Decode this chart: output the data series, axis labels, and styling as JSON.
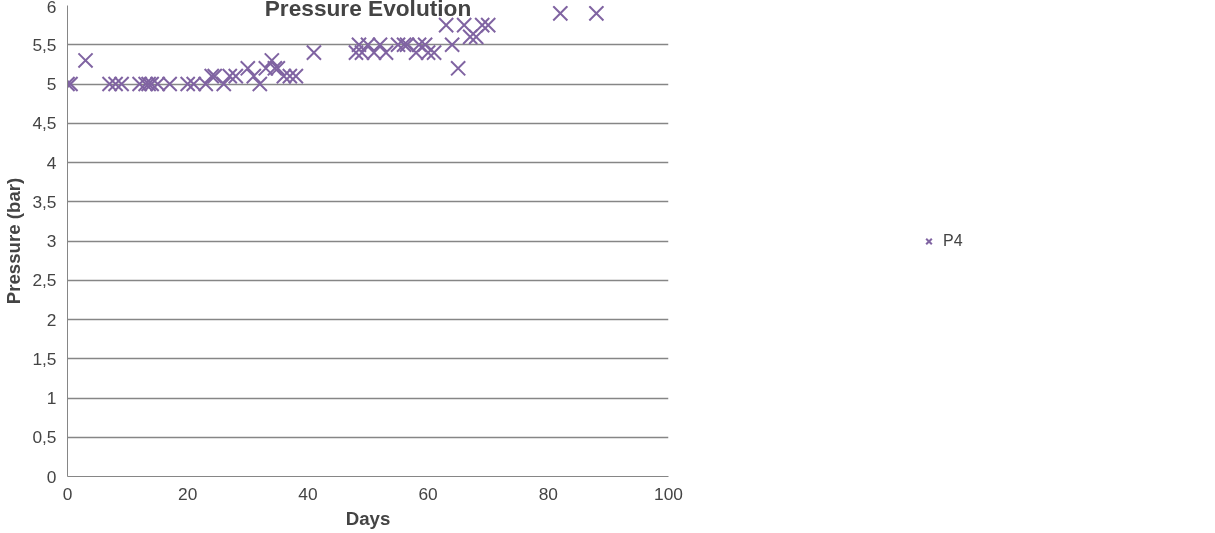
{
  "chart_data": {
    "type": "scatter",
    "title": "Pressure Evolution",
    "xlabel": "Days",
    "ylabel": "Pressure (bar)",
    "xlim": [
      0,
      100
    ],
    "xticks": [
      0,
      20,
      40,
      60,
      80,
      100
    ],
    "ylim": [
      0,
      6
    ],
    "yticks": [
      0,
      {
        "value": 0.5,
        "label": "0,5"
      },
      1,
      {
        "value": 1.5,
        "label": "1,5"
      },
      2,
      {
        "value": 2.5,
        "label": "2,5"
      },
      3,
      {
        "value": 3.5,
        "label": "3,5"
      },
      4,
      {
        "value": 4.5,
        "label": "4,5"
      },
      5,
      {
        "value": 5.5,
        "label": "5,5"
      },
      6
    ],
    "grid": "y",
    "legend": "right",
    "marker": "cross",
    "series": [
      {
        "name": "P4",
        "color": "#8064a2",
        "x": [
          0,
          0.5,
          3,
          7,
          8,
          9,
          12,
          13,
          13.5,
          14,
          15,
          17,
          20,
          21,
          23,
          24,
          24.5,
          26,
          27,
          28,
          30,
          31,
          32,
          33,
          34,
          34.5,
          35,
          36,
          37,
          38,
          41,
          48,
          48.5,
          49,
          50,
          51,
          52,
          53,
          55,
          56,
          56.5,
          58,
          58.5,
          59.5,
          60,
          61,
          63,
          64,
          65,
          66,
          67,
          68,
          69,
          70,
          82,
          88
        ],
        "values": [
          5,
          5,
          5.3,
          5,
          5,
          5,
          5,
          5,
          5,
          5,
          5,
          5,
          5,
          5,
          5,
          5.1,
          5.1,
          5,
          5.1,
          5.1,
          5.2,
          5.1,
          5,
          5.2,
          5.3,
          5.2,
          5.2,
          5.1,
          5.1,
          5.1,
          5.4,
          5.4,
          5.5,
          5.4,
          5.5,
          5.4,
          5.5,
          5.4,
          5.5,
          5.5,
          5.5,
          5.4,
          5.5,
          5.5,
          5.4,
          5.4,
          5.75,
          5.5,
          5.2,
          5.75,
          5.6,
          5.6,
          5.75,
          5.75,
          5.9,
          5.9
        ]
      }
    ]
  }
}
